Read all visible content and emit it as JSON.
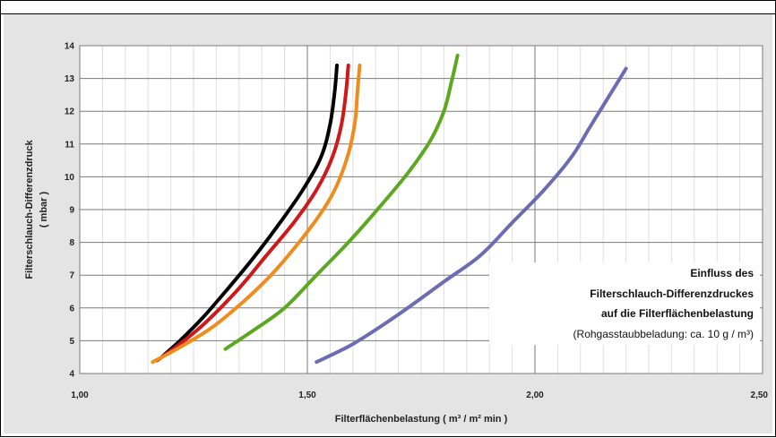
{
  "chart_data": {
    "type": "line",
    "xlabel": "Filterflächenbelastung  ( m³ / m² min )",
    "ylabel_line1": "Filterschlauch-Differenzdruck",
    "ylabel_line2": "( mbar )",
    "xlim": [
      1.0,
      2.5
    ],
    "ylim": [
      4,
      14
    ],
    "x_ticks": [
      "1,00",
      "1,50",
      "2,00",
      "2,50"
    ],
    "x_tick_values": [
      1.0,
      1.5,
      2.0,
      2.5
    ],
    "y_ticks": [
      "4",
      "5",
      "6",
      "7",
      "8",
      "9",
      "10",
      "11",
      "12",
      "13",
      "14"
    ],
    "y_tick_values": [
      4,
      5,
      6,
      7,
      8,
      9,
      10,
      11,
      12,
      13,
      14
    ],
    "grid": true,
    "annotation": {
      "line1": "Einfluss des",
      "line2": "Filterschlauch-Differenzdruckes",
      "line3": "auf die Filterflächenbelastung",
      "line4": "(Rohgasstaubbeladung: ca. 10 g / m³)"
    },
    "series": [
      {
        "color": "#000000",
        "points": [
          [
            1.18,
            4.5
          ],
          [
            1.22,
            5.0
          ],
          [
            1.27,
            5.7
          ],
          [
            1.32,
            6.5
          ],
          [
            1.38,
            7.5
          ],
          [
            1.44,
            8.6
          ],
          [
            1.49,
            9.6
          ],
          [
            1.53,
            10.6
          ],
          [
            1.55,
            11.6
          ],
          [
            1.56,
            12.6
          ],
          [
            1.565,
            13.4
          ]
        ]
      },
      {
        "color": "#d01818",
        "points": [
          [
            1.17,
            4.4
          ],
          [
            1.22,
            4.9
          ],
          [
            1.28,
            5.6
          ],
          [
            1.35,
            6.6
          ],
          [
            1.41,
            7.6
          ],
          [
            1.47,
            8.6
          ],
          [
            1.52,
            9.6
          ],
          [
            1.555,
            10.6
          ],
          [
            1.575,
            11.6
          ],
          [
            1.585,
            12.6
          ],
          [
            1.59,
            13.4
          ]
        ]
      },
      {
        "color": "#f08c1e",
        "points": [
          [
            1.16,
            4.35
          ],
          [
            1.22,
            4.8
          ],
          [
            1.29,
            5.4
          ],
          [
            1.36,
            6.2
          ],
          [
            1.42,
            7.0
          ],
          [
            1.47,
            7.8
          ],
          [
            1.52,
            8.7
          ],
          [
            1.56,
            9.6
          ],
          [
            1.59,
            10.7
          ],
          [
            1.605,
            11.7
          ],
          [
            1.61,
            12.6
          ],
          [
            1.615,
            13.4
          ]
        ]
      },
      {
        "color": "#5ca820",
        "points": [
          [
            1.32,
            4.75
          ],
          [
            1.38,
            5.3
          ],
          [
            1.45,
            6.0
          ],
          [
            1.52,
            7.0
          ],
          [
            1.59,
            8.0
          ],
          [
            1.66,
            9.1
          ],
          [
            1.72,
            10.1
          ],
          [
            1.77,
            11.1
          ],
          [
            1.8,
            12.0
          ],
          [
            1.815,
            12.8
          ],
          [
            1.83,
            13.7
          ]
        ]
      },
      {
        "color": "#6c6cb4",
        "points": [
          [
            1.52,
            4.35
          ],
          [
            1.6,
            4.9
          ],
          [
            1.7,
            5.8
          ],
          [
            1.8,
            6.8
          ],
          [
            1.88,
            7.6
          ],
          [
            1.95,
            8.6
          ],
          [
            2.02,
            9.6
          ],
          [
            2.08,
            10.6
          ],
          [
            2.12,
            11.5
          ],
          [
            2.16,
            12.4
          ],
          [
            2.2,
            13.3
          ]
        ]
      }
    ]
  }
}
